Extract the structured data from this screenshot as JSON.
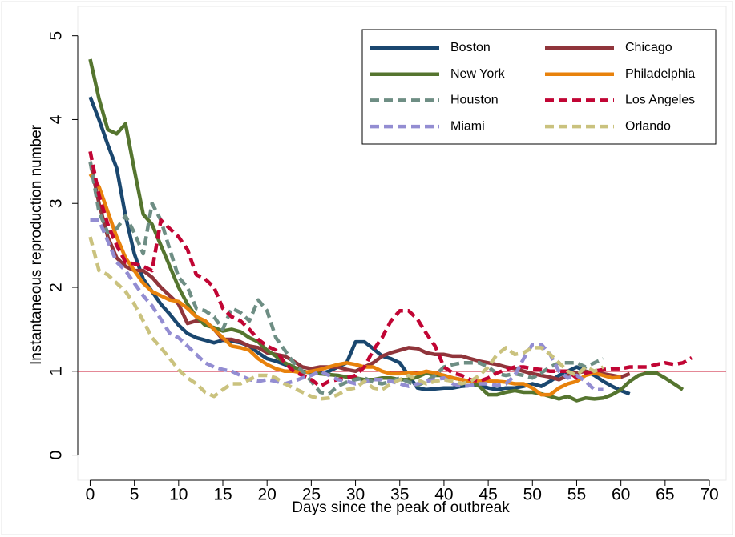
{
  "chart_data": {
    "type": "line",
    "x_label": "Days since the peak of outbreak",
    "y_label": "Instantaneous reproduction number",
    "xlim": [
      -1.4,
      71.9
    ],
    "ylim": [
      -0.3,
      5.35
    ],
    "xticks": [
      0,
      5,
      10,
      15,
      20,
      25,
      30,
      35,
      40,
      45,
      50,
      55,
      60,
      65,
      70
    ],
    "yticks": [
      0,
      1,
      2,
      3,
      4,
      5
    ],
    "reference_line": {
      "value": 1,
      "color": "#c8102e"
    },
    "x": [
      0,
      1,
      2,
      3,
      4,
      5,
      6,
      7,
      8,
      9,
      10,
      11,
      12,
      13,
      14,
      15,
      16,
      17,
      18,
      19,
      20,
      21,
      22,
      23,
      24,
      25,
      26,
      27,
      28,
      29,
      30,
      31,
      32,
      33,
      34,
      35,
      36,
      37,
      38,
      39,
      40,
      41,
      42,
      43,
      44,
      45,
      46,
      47,
      48,
      49,
      50,
      51,
      52,
      53,
      54,
      55,
      56,
      57,
      58,
      59,
      60,
      61,
      62,
      63,
      64,
      65,
      66,
      67,
      68
    ],
    "series": [
      {
        "name": "Boston",
        "color": "#1a476f",
        "dashed": false,
        "values": [
          4.27,
          4.0,
          3.7,
          3.42,
          2.85,
          2.4,
          2.1,
          1.95,
          1.8,
          1.68,
          1.55,
          1.45,
          1.4,
          1.37,
          1.34,
          1.37,
          1.36,
          1.34,
          1.3,
          1.22,
          1.15,
          1.12,
          1.08,
          1.05,
          1.0,
          0.98,
          0.97,
          1.0,
          1.05,
          1.1,
          1.35,
          1.35,
          1.27,
          1.18,
          1.15,
          1.1,
          0.95,
          0.8,
          0.78,
          0.79,
          0.8,
          0.8,
          0.82,
          0.83,
          0.83,
          0.8,
          0.78,
          0.8,
          0.8,
          0.82,
          0.85,
          0.82,
          0.88,
          0.95,
          1.0,
          1.05,
          1.0,
          0.95,
          0.88,
          0.82,
          0.77,
          0.73,
          null,
          null,
          null,
          null,
          null,
          null,
          null
        ]
      },
      {
        "name": "Chicago",
        "color": "#90353b",
        "dashed": false,
        "values": [
          3.5,
          3.0,
          2.6,
          2.35,
          2.25,
          2.2,
          2.2,
          2.12,
          2.0,
          1.9,
          1.8,
          1.57,
          1.6,
          1.6,
          1.5,
          1.38,
          1.38,
          1.35,
          1.3,
          1.28,
          1.22,
          1.2,
          1.18,
          1.12,
          1.05,
          1.03,
          1.05,
          1.05,
          1.05,
          1.02,
          1.0,
          1.05,
          1.1,
          1.18,
          1.22,
          1.25,
          1.28,
          1.27,
          1.22,
          1.2,
          1.2,
          1.18,
          1.18,
          1.15,
          1.12,
          1.1,
          1.08,
          1.05,
          1.03,
          1.0,
          0.97,
          0.95,
          0.93,
          0.9,
          0.95,
          0.98,
          1.0,
          0.98,
          0.97,
          0.95,
          0.93,
          0.97,
          null,
          null,
          null,
          null,
          null,
          null,
          null
        ]
      },
      {
        "name": "New York",
        "color": "#55752f",
        "dashed": false,
        "values": [
          4.72,
          4.25,
          3.88,
          3.83,
          3.95,
          3.4,
          2.87,
          2.75,
          2.5,
          2.25,
          2.0,
          1.8,
          1.65,
          1.55,
          1.52,
          1.48,
          1.5,
          1.47,
          1.4,
          1.35,
          1.25,
          1.18,
          1.1,
          1.05,
          1.0,
          0.98,
          0.97,
          0.96,
          0.95,
          0.93,
          0.92,
          0.9,
          0.9,
          0.92,
          0.92,
          0.9,
          0.9,
          0.93,
          0.98,
          0.95,
          0.95,
          0.92,
          0.9,
          0.88,
          0.82,
          0.72,
          0.72,
          0.75,
          0.77,
          0.75,
          0.75,
          0.73,
          0.7,
          0.67,
          0.7,
          0.65,
          0.68,
          0.67,
          0.68,
          0.72,
          0.78,
          0.88,
          0.95,
          0.98,
          0.98,
          0.92,
          0.85,
          0.78,
          null
        ]
      },
      {
        "name": "Philadelphia",
        "color": "#e8820c",
        "dashed": false,
        "values": [
          3.35,
          3.2,
          2.9,
          2.6,
          2.35,
          2.2,
          2.05,
          1.95,
          1.9,
          1.85,
          1.83,
          1.75,
          1.65,
          1.6,
          1.5,
          1.4,
          1.3,
          1.28,
          1.25,
          1.15,
          1.08,
          1.03,
          1.0,
          1.0,
          0.98,
          1.0,
          1.02,
          1.05,
          1.08,
          1.1,
          1.08,
          1.05,
          1.05,
          1.0,
          0.97,
          0.97,
          0.98,
          0.97,
          1.0,
          0.98,
          0.95,
          0.92,
          0.9,
          0.88,
          0.88,
          0.88,
          0.88,
          0.87,
          0.85,
          0.85,
          0.8,
          0.72,
          0.72,
          0.8,
          0.85,
          0.88,
          0.95,
          0.98,
          0.95,
          0.92,
          0.93,
          null,
          null,
          null,
          null,
          null,
          null,
          null,
          null
        ]
      },
      {
        "name": "Houston",
        "color": "#6e8e84",
        "dashed": true,
        "values": [
          3.5,
          2.9,
          2.65,
          2.7,
          2.85,
          2.65,
          2.4,
          3.0,
          2.8,
          2.45,
          2.12,
          2.0,
          1.75,
          1.72,
          1.65,
          1.5,
          1.75,
          1.7,
          1.6,
          1.85,
          1.72,
          1.4,
          1.25,
          1.1,
          1.0,
          0.88,
          0.75,
          0.73,
          0.82,
          0.87,
          0.9,
          0.92,
          0.87,
          0.85,
          0.88,
          0.92,
          0.87,
          0.83,
          0.88,
          0.95,
          1.05,
          1.08,
          1.1,
          1.1,
          1.1,
          1.05,
          0.97,
          0.95,
          0.97,
          0.95,
          0.92,
          0.98,
          1.05,
          1.1,
          1.1,
          1.1,
          1.05,
          1.1,
          1.15,
          null,
          null,
          null,
          null,
          null,
          null,
          null,
          null,
          null,
          null
        ]
      },
      {
        "name": "Los Angeles",
        "color": "#c10534",
        "dashed": true,
        "values": [
          3.62,
          3.1,
          2.75,
          2.5,
          2.3,
          2.28,
          2.25,
          2.2,
          2.8,
          2.7,
          2.6,
          2.45,
          2.15,
          2.1,
          2.0,
          1.75,
          1.65,
          1.6,
          1.5,
          1.38,
          1.3,
          1.25,
          1.1,
          1.0,
          0.95,
          0.9,
          0.82,
          0.88,
          0.9,
          0.92,
          0.95,
          1.05,
          1.25,
          1.4,
          1.6,
          1.72,
          1.72,
          1.62,
          1.45,
          1.3,
          1.05,
          0.98,
          0.95,
          0.9,
          0.88,
          0.92,
          0.98,
          1.02,
          1.05,
          1.05,
          1.03,
          1.02,
          1.0,
          1.0,
          1.0,
          0.92,
          0.98,
          1.0,
          1.02,
          1.03,
          1.03,
          1.05,
          1.05,
          1.05,
          1.08,
          1.1,
          1.08,
          1.1,
          1.16
        ]
      },
      {
        "name": "Miami",
        "color": "#938dd2",
        "dashed": true,
        "values": [
          2.8,
          2.8,
          2.55,
          2.3,
          2.2,
          2.05,
          1.9,
          1.78,
          1.62,
          1.45,
          1.4,
          1.3,
          1.2,
          1.1,
          1.05,
          1.02,
          1.0,
          0.95,
          0.9,
          0.88,
          0.9,
          0.88,
          0.85,
          0.88,
          0.92,
          0.95,
          1.0,
          0.95,
          0.9,
          0.88,
          0.85,
          0.87,
          0.9,
          0.9,
          0.88,
          0.85,
          0.82,
          0.85,
          0.88,
          0.9,
          0.92,
          0.85,
          0.82,
          0.83,
          0.85,
          0.85,
          0.83,
          0.85,
          0.95,
          1.15,
          1.32,
          1.32,
          1.2,
          1.0,
          0.92,
          0.95,
          0.88,
          0.78,
          0.78,
          null,
          null,
          null,
          null,
          null,
          null,
          null,
          null,
          null,
          null
        ]
      },
      {
        "name": "Orlando",
        "color": "#cac27e",
        "dashed": true,
        "values": [
          2.6,
          2.2,
          2.15,
          2.05,
          1.95,
          1.8,
          1.6,
          1.4,
          1.28,
          1.15,
          1.02,
          0.92,
          0.85,
          0.75,
          0.7,
          0.78,
          0.85,
          0.85,
          0.9,
          0.95,
          0.95,
          0.92,
          0.85,
          0.8,
          0.75,
          0.7,
          0.67,
          0.68,
          0.72,
          0.78,
          0.8,
          0.88,
          0.8,
          0.78,
          0.85,
          0.9,
          0.95,
          0.9,
          0.85,
          0.88,
          0.9,
          0.88,
          0.85,
          0.88,
          0.95,
          1.05,
          1.2,
          1.28,
          1.2,
          1.22,
          1.28,
          1.28,
          1.2,
          1.1,
          1.0,
          0.95,
          1.05,
          1.0,
          1.05,
          null,
          null,
          null,
          null,
          null,
          null,
          null,
          null,
          null,
          null
        ]
      }
    ]
  }
}
